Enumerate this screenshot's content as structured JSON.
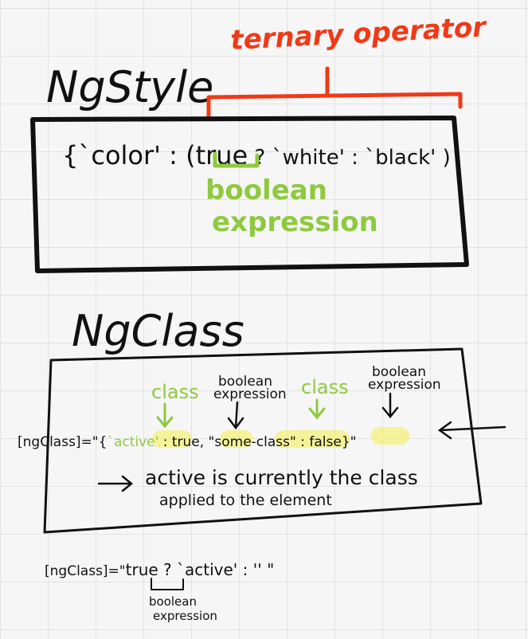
{
  "ngstyle": {
    "title": "NgStyle",
    "code": {
      "open": "{`color' : (",
      "cond": "true",
      "rest": " ? `white' : `black' )"
    },
    "annotation_top": "ternary operator",
    "annotation_bottom": [
      "boolean",
      "expression"
    ]
  },
  "ngclass": {
    "title": "NgClass",
    "labels": {
      "class_1": "class",
      "bool_1": [
        "boolean",
        "expression"
      ],
      "class_2": "class",
      "bool_2": [
        "boolean",
        "expression"
      ]
    },
    "code": {
      "prefix": "[ngClass]=\"{",
      "active": "`active'",
      "colon1": " : ",
      "true_val": "true",
      "comma": ", \"",
      "some_class": "some-class",
      "colon2": "\" : ",
      "false_val": "false",
      "suffix": "}\""
    },
    "note_line1": "active is currently the class",
    "note_line2": "applied to the element"
  },
  "ternary_example": {
    "code_prefix": "[ngClass]=\"",
    "cond": "true",
    "rest": " ? `active' : '' \"",
    "annotation": [
      "boolean",
      "expression"
    ]
  },
  "colors": {
    "ink": "#111111",
    "red": "#f03a17",
    "green": "#8fc93f",
    "highlight": "#f4f07a"
  }
}
